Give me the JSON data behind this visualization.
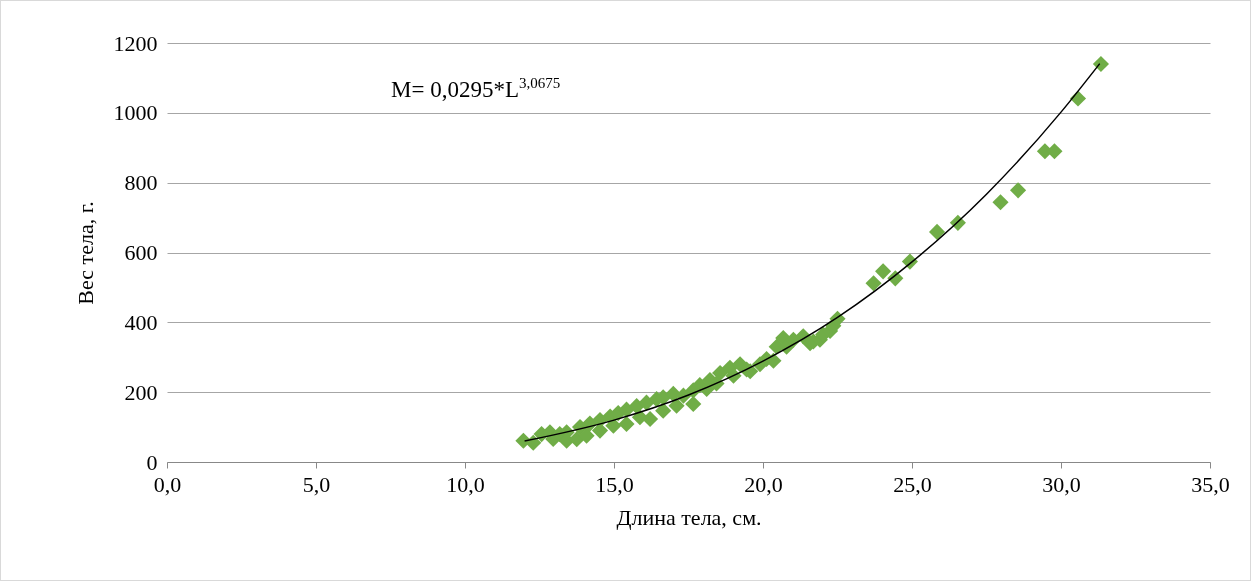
{
  "chart_data": {
    "type": "scatter",
    "xlabel": "Длина тела, см.",
    "ylabel": "Вес тела, г.",
    "xlim": [
      0,
      35
    ],
    "xticks": [
      {
        "value": 0,
        "label": "0,0"
      },
      {
        "value": 5,
        "label": "5,0"
      },
      {
        "value": 10,
        "label": "10,0"
      },
      {
        "value": 15,
        "label": "15,0"
      },
      {
        "value": 20,
        "label": "20,0"
      },
      {
        "value": 25,
        "label": "25,0"
      },
      {
        "value": 30,
        "label": "30,0"
      },
      {
        "value": 35,
        "label": "35,0"
      }
    ],
    "ylim": [
      0,
      1200
    ],
    "yticks": [
      0,
      200,
      400,
      600,
      800,
      1000,
      1200
    ],
    "grid": "y",
    "annotations": [
      "M= 0,0295*L$^{3,0675}$"
    ],
    "series": [
      {
        "marker": "diamond",
        "color": "#70ad47",
        "x": [
          11.96,
          12.29,
          12.57,
          12.85,
          12.96,
          13.18,
          13.41,
          13.41,
          13.75,
          13.86,
          14.08,
          14.19,
          14.53,
          14.53,
          14.87,
          14.98,
          15.14,
          15.42,
          15.42,
          15.76,
          15.87,
          16.09,
          16.21,
          16.43,
          16.65,
          16.65,
          16.99,
          17.1,
          17.33,
          17.66,
          17.66,
          17.88,
          18.11,
          18.22,
          18.44,
          18.56,
          18.89,
          19.01,
          19.23,
          19.45,
          19.57,
          19.9,
          20.12,
          20.35,
          20.46,
          20.68,
          20.79,
          21.02,
          21.35,
          21.58,
          21.69,
          21.91,
          22.02,
          22.25,
          22.36,
          22.5,
          23.71,
          24.03,
          24.44,
          24.93,
          25.84,
          26.54,
          27.97,
          28.56,
          29.46,
          29.78,
          30.57,
          31.34
        ],
        "values": [
          61,
          55,
          80,
          85,
          66,
          80,
          85,
          61,
          65,
          100,
          75,
          110,
          120,
          90,
          130,
          104,
          140,
          150,
          109,
          160,
          128,
          170,
          123,
          180,
          185,
          147,
          195,
          161,
          190,
          205,
          166,
          220,
          209,
          235,
          225,
          255,
          270,
          247,
          280,
          265,
          260,
          280,
          295,
          290,
          330,
          355,
          330,
          350,
          360,
          340,
          345,
          350,
          365,
          375,
          390,
          410,
          512,
          546,
          526,
          574,
          659,
          685,
          744,
          778,
          890,
          890,
          1041,
          1140
        ]
      },
      {
        "type": "line",
        "color": "#000000",
        "x": [
          12,
          15,
          17.5,
          20,
          22.5,
          25,
          27.5,
          30,
          31.3
        ],
        "values": [
          60,
          120,
          192,
          289,
          414,
          573,
          767,
          1002,
          1141
        ]
      }
    ]
  }
}
